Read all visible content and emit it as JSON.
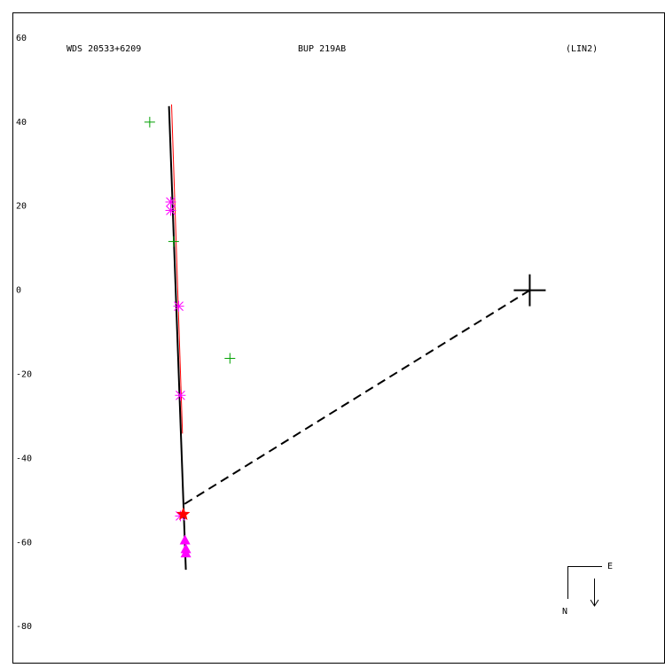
{
  "chart_data": {
    "type": "scatter",
    "title": "WDS 20533+6209",
    "subtitle": "BUP 219AB",
    "annotations": [
      "(LIN2)",
      "E",
      "N"
    ],
    "xlim": [
      -123.2,
      32.0
    ],
    "ylim": [
      -88.6,
      66.1
    ],
    "yticks": [
      60,
      40,
      20,
      0,
      -20,
      -40,
      -60,
      -80
    ],
    "series": [
      {
        "style": "line",
        "color": "#000000",
        "x": [
          -85.9,
          -81.9
        ],
        "values": [
          43.8,
          -66.5
        ]
      },
      {
        "style": "line",
        "color": "#ff0000",
        "x": [
          -85.3,
          -82.7
        ],
        "values": [
          44.2,
          -34.1
        ]
      },
      {
        "style": "dashed",
        "color": "#000000",
        "x": [
          0,
          -82.3
        ],
        "values": [
          0,
          -50.9
        ]
      },
      {
        "style": "marker",
        "marker": "plus",
        "color": "#00a000",
        "x": [
          -90.5,
          -84.8,
          -71.4
        ],
        "values": [
          40,
          11.6,
          -16.2
        ]
      },
      {
        "style": "marker",
        "marker": "asterisk",
        "color": "#ff00ff",
        "x": [
          -85.5,
          -85.5,
          -83.6,
          -83.2,
          -83.2
        ],
        "values": [
          21,
          19,
          -3.8,
          -25,
          -53.7
        ]
      },
      {
        "style": "marker",
        "marker": "star",
        "color": "#ff0000",
        "x": [
          -82.5
        ],
        "values": [
          -53.3
        ]
      },
      {
        "style": "marker",
        "marker": "triangle",
        "color": "#ff00ff",
        "x": [
          -82.1,
          -81.9,
          -81.9
        ],
        "values": [
          -59.4,
          -61.5,
          -62.5
        ]
      },
      {
        "style": "marker",
        "marker": "cross",
        "color": "#000000",
        "x": [
          0
        ],
        "values": [
          0
        ]
      }
    ]
  }
}
